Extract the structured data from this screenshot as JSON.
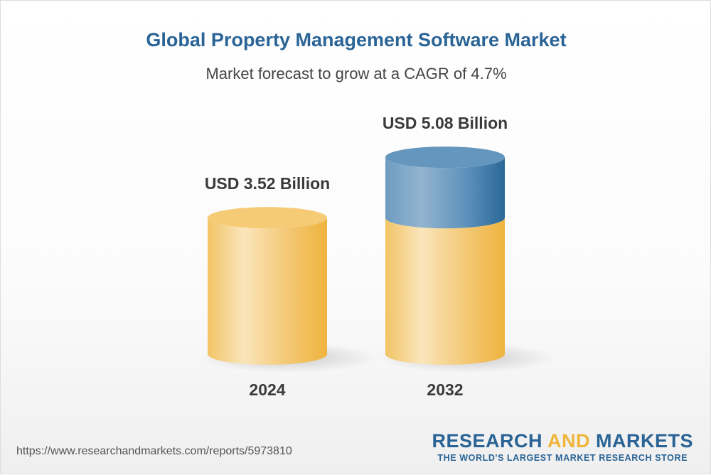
{
  "title": "Global Property Management Software Market",
  "subtitle": "Market forecast to grow at a CAGR of 4.7%",
  "chart_data": {
    "type": "bar",
    "style": "3d-cylinder",
    "categories": [
      "2024",
      "2032"
    ],
    "values": [
      3.52,
      5.08
    ],
    "unit": "USD Billion",
    "data_labels": [
      "USD 3.52 Billion",
      "USD 5.08 Billion"
    ],
    "colors": {
      "base": "#f2c25e",
      "growth": "#3a79a8"
    },
    "grid": false,
    "cagr": "4.7%"
  },
  "footer": {
    "url": "https://www.researchandmarkets.com/reports/5973810",
    "logo_part1": "RESEARCH ",
    "logo_part2": "AND",
    "logo_part3": " MARKETS",
    "tagline": "THE WORLD'S LARGEST MARKET RESEARCH STORE"
  }
}
